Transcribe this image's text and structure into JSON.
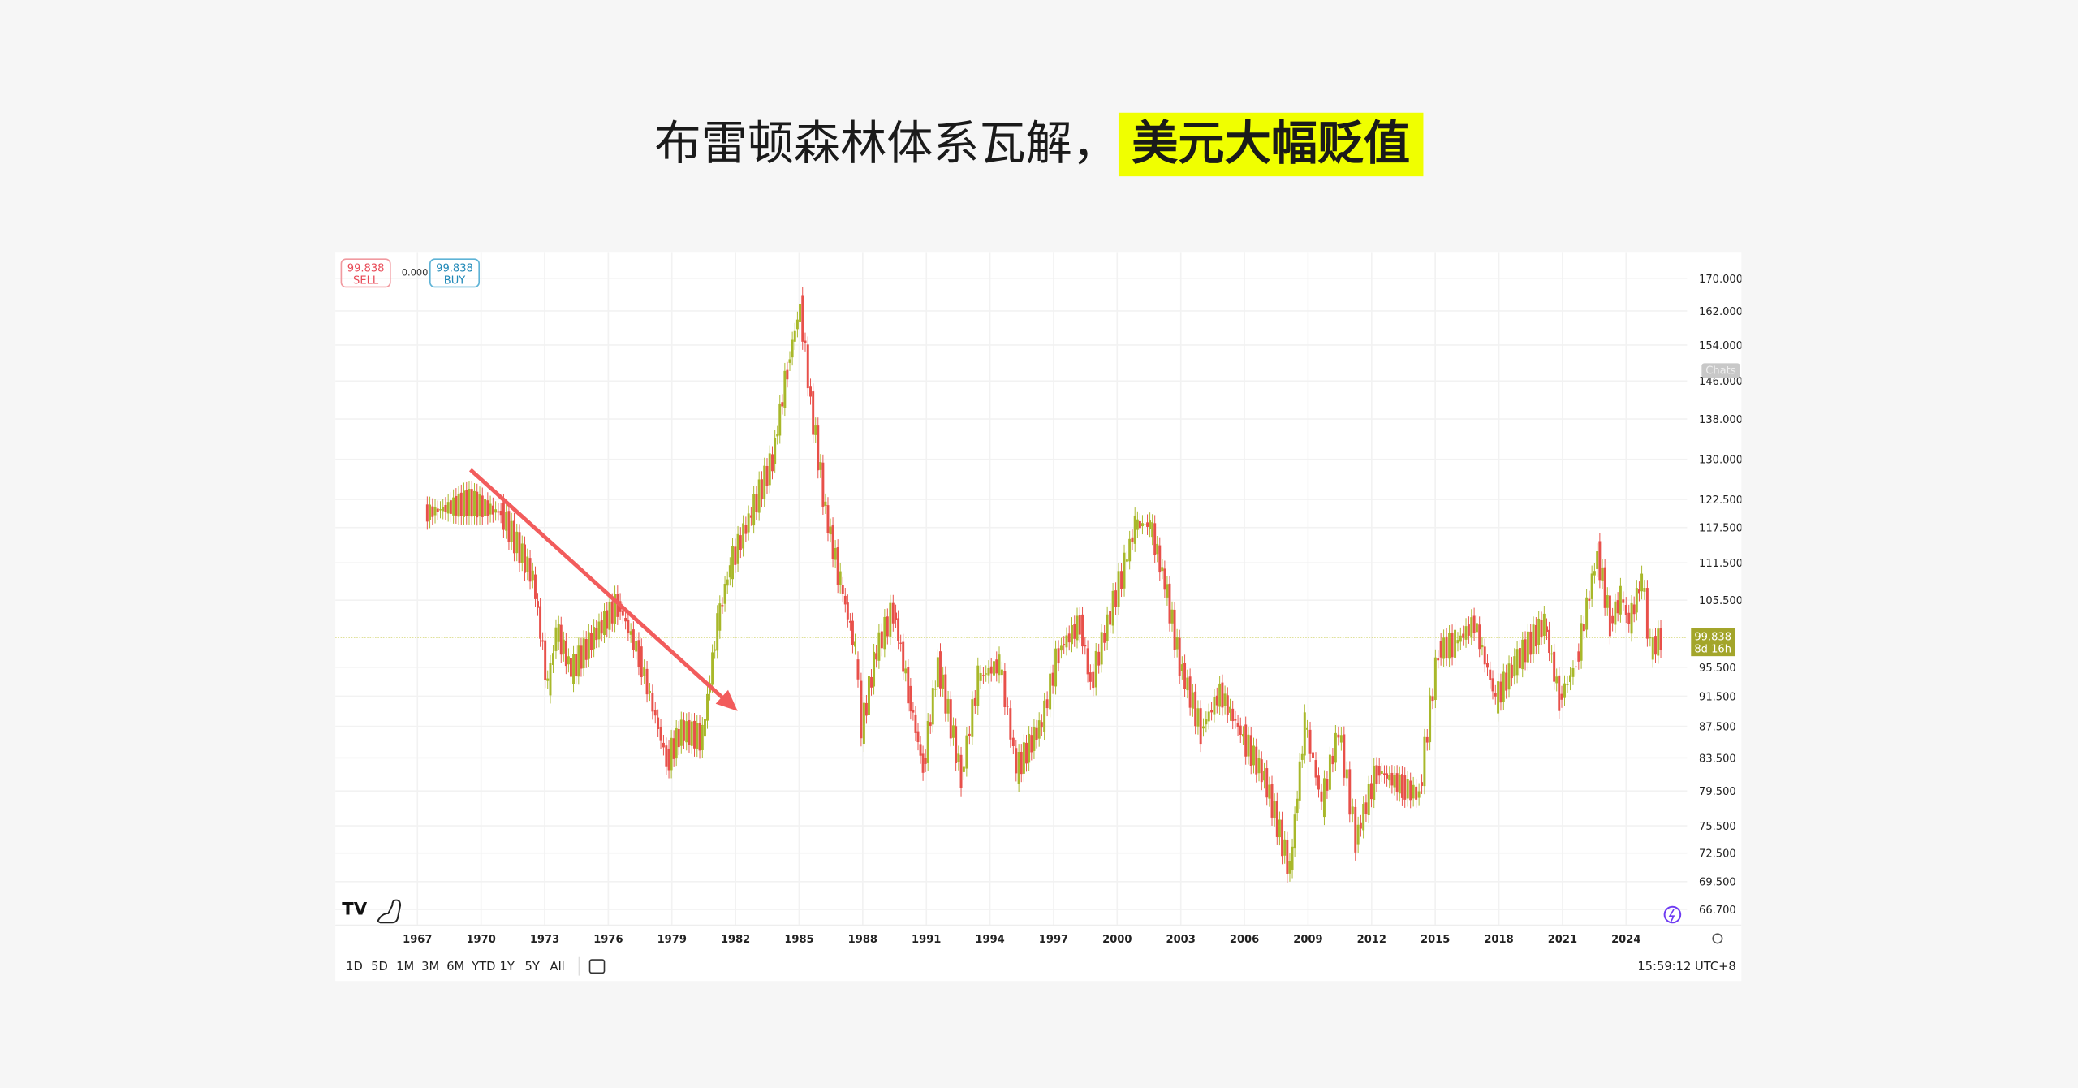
{
  "header": {
    "title_main": "布雷顿森林体系瓦解，",
    "title_highlight": "美元大幅贬值",
    "highlight_color": "#f0ff00"
  },
  "trade": {
    "sell_price": "99.838",
    "sell_label": "SELL",
    "spread": "0.000",
    "buy_price": "99.838",
    "buy_label": "BUY"
  },
  "toolbar": {
    "timeframes": [
      "1D",
      "5D",
      "1M",
      "3M",
      "6M",
      "YTD",
      "1Y",
      "5Y",
      "All"
    ],
    "clock": "15:59:12 UTC+8",
    "chats_label": "Chats"
  },
  "last_price": {
    "value": "99.838",
    "countdown": "8d 16h",
    "color": "#a3a52a"
  },
  "colors": {
    "up": "#a8b82a",
    "down": "#e8504a",
    "arrow": "#f25c5c"
  },
  "chart_data": {
    "type": "line",
    "y_scale": "log",
    "ylim": [
      66.7,
      170
    ],
    "xlim": [
      1963.3,
      2027.5
    ],
    "y_ticks": [
      "170.000",
      "162.000",
      "154.000",
      "146.000",
      "138.000",
      "130.000",
      "122.500",
      "117.500",
      "111.500",
      "105.500",
      "95.500",
      "91.500",
      "87.500",
      "83.500",
      "79.500",
      "75.500",
      "72.500",
      "69.500",
      "66.700"
    ],
    "x_ticks": [
      "1967",
      "1970",
      "1973",
      "1976",
      "1979",
      "1982",
      "1985",
      "1988",
      "1991",
      "1994",
      "1997",
      "2000",
      "2003",
      "2006",
      "2009",
      "2012",
      "2015",
      "2018",
      "2021",
      "2024"
    ],
    "grid": true,
    "points": [
      [
        1967.4,
        120
      ],
      [
        1969.5,
        122
      ],
      [
        1971,
        120
      ],
      [
        1972.5,
        109
      ],
      [
        1973.2,
        92.4
      ],
      [
        1973.6,
        101
      ],
      [
        1974.3,
        95
      ],
      [
        1975.5,
        100.6
      ],
      [
        1976.5,
        105
      ],
      [
        1977.5,
        97
      ],
      [
        1978.8,
        83
      ],
      [
        1979.5,
        87
      ],
      [
        1980.5,
        86
      ],
      [
        1981.2,
        102
      ],
      [
        1981.8,
        111
      ],
      [
        1982.8,
        120
      ],
      [
        1983.8,
        130
      ],
      [
        1984.5,
        149
      ],
      [
        1985.1,
        163
      ],
      [
        1985.6,
        141
      ],
      [
        1986.3,
        120
      ],
      [
        1987.0,
        108
      ],
      [
        1987.7,
        98
      ],
      [
        1988.0,
        87
      ],
      [
        1988.7,
        98
      ],
      [
        1989.5,
        104
      ],
      [
        1990.2,
        92
      ],
      [
        1990.9,
        82
      ],
      [
        1991.6,
        96
      ],
      [
        1992.7,
        81
      ],
      [
        1993.5,
        94
      ],
      [
        1994.5,
        96
      ],
      [
        1995.3,
        82
      ],
      [
        1996.5,
        88
      ],
      [
        1997.3,
        98
      ],
      [
        1998.3,
        102
      ],
      [
        1998.8,
        93
      ],
      [
        1999.6,
        102
      ],
      [
        2000.4,
        111
      ],
      [
        2000.9,
        118
      ],
      [
        2001.6,
        118
      ],
      [
        2002.3,
        108
      ],
      [
        2003,
        96
      ],
      [
        2004,
        87
      ],
      [
        2004.9,
        92
      ],
      [
        2006,
        86
      ],
      [
        2007,
        81
      ],
      [
        2008.2,
        70.5
      ],
      [
        2008.9,
        88
      ],
      [
        2009.7,
        78
      ],
      [
        2010.5,
        87
      ],
      [
        2011.3,
        74
      ],
      [
        2012.3,
        82
      ],
      [
        2013.5,
        80
      ],
      [
        2014.3,
        79
      ],
      [
        2015.2,
        98
      ],
      [
        2016,
        99
      ],
      [
        2016.9,
        102
      ],
      [
        2017.9,
        91
      ],
      [
        2018.8,
        96
      ],
      [
        2020.2,
        102
      ],
      [
        2020.9,
        91
      ],
      [
        2021.7,
        96
      ],
      [
        2022.7,
        113
      ],
      [
        2023.3,
        102
      ],
      [
        2023.8,
        106
      ],
      [
        2024.2,
        102
      ],
      [
        2024.8,
        109
      ],
      [
        2025.2,
        98
      ],
      [
        2025.7,
        99.838
      ]
    ],
    "last_value": 99.838,
    "annotation": {
      "type": "arrow",
      "from": [
        1969.5,
        128
      ],
      "to": [
        1982.1,
        89.5
      ]
    }
  }
}
